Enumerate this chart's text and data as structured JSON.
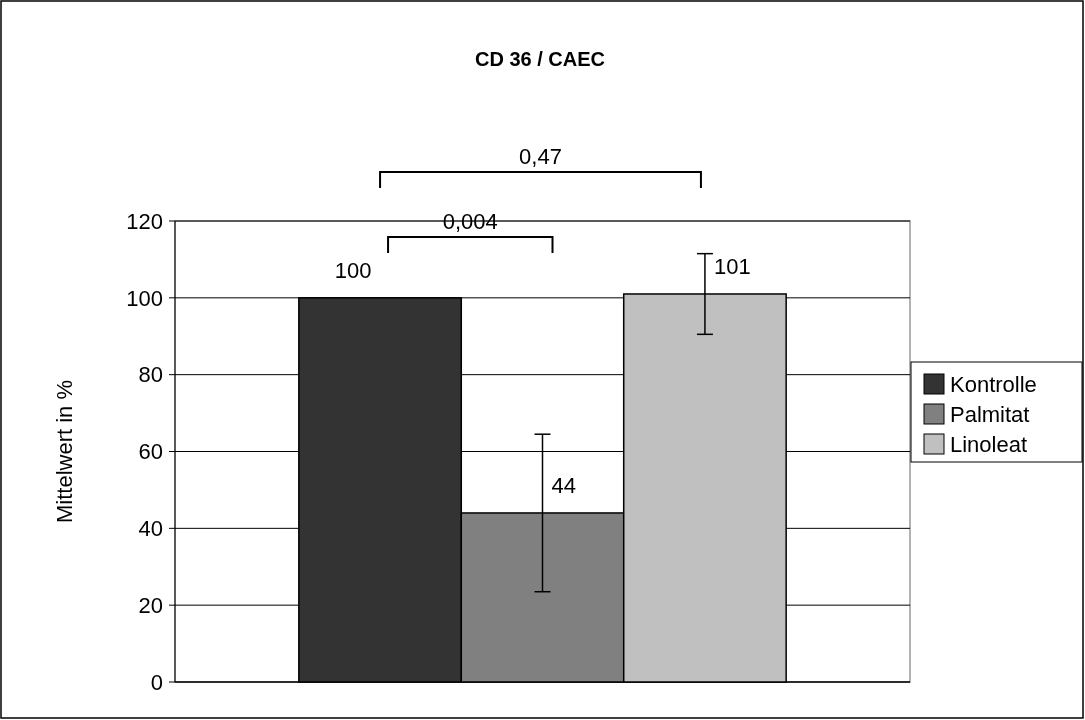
{
  "chart_data": {
    "type": "bar",
    "title": "CD 36 / CAEC",
    "ylabel": "Mittelwert in %",
    "categories": [
      null
    ],
    "series": [
      {
        "name": "Kontrolle",
        "color": "#333333",
        "values": [
          100
        ]
      },
      {
        "name": "Palmitat",
        "color": "#808080",
        "values": [
          44
        ],
        "errors": [
          20.5
        ]
      },
      {
        "name": "Linoleat",
        "color": "#c0c0c0",
        "values": [
          101
        ],
        "errors": [
          10.5
        ]
      }
    ],
    "ylim": [
      0,
      120
    ],
    "yticks": [
      0,
      20,
      40,
      60,
      80,
      100,
      120
    ],
    "grid": "y",
    "legend": "right",
    "data_labels": true,
    "annotations": [
      "0,004",
      "0,47"
    ]
  }
}
